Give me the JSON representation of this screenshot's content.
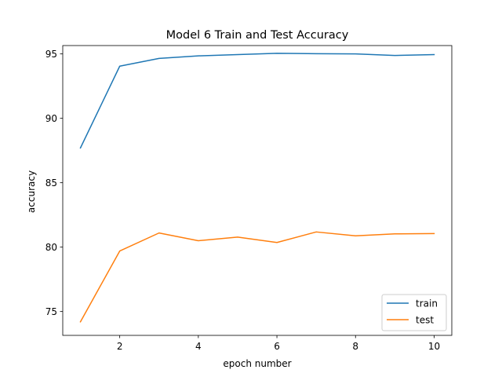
{
  "chart_data": {
    "type": "line",
    "title": "Model 6 Train and Test Accuracy",
    "xlabel": "epoch number",
    "ylabel": "accuracy",
    "xlim": [
      0.55,
      10.45
    ],
    "ylim": [
      73.15,
      95.65
    ],
    "x": [
      1,
      2,
      3,
      4,
      5,
      6,
      7,
      8,
      9,
      10
    ],
    "xticks": [
      2,
      4,
      6,
      8,
      10
    ],
    "yticks": [
      75,
      80,
      85,
      90,
      95
    ],
    "series": [
      {
        "name": "train",
        "color": "#1f77b4",
        "values": [
          87.7,
          94.05,
          94.65,
          94.85,
          94.95,
          95.05,
          95.02,
          95.0,
          94.88,
          94.95
        ]
      },
      {
        "name": "test",
        "color": "#ff7f0e",
        "values": [
          74.2,
          79.7,
          81.1,
          80.5,
          80.78,
          80.36,
          81.18,
          80.88,
          81.03,
          81.05
        ]
      }
    ],
    "grid": false,
    "legend_position": "lower-right"
  }
}
